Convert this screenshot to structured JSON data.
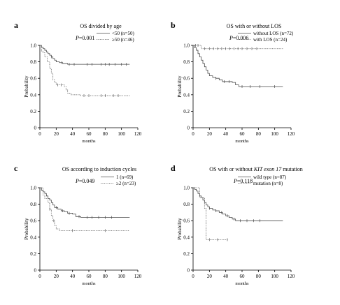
{
  "figure": {
    "background": "#ffffff"
  },
  "chart_data": [
    {
      "type": "line",
      "letter": "a",
      "title": "OS divided by age",
      "p_label": "P",
      "p_text": "=0.001",
      "xlabel": "months",
      "ylabel": "Probability",
      "xlim": [
        0,
        120
      ],
      "ylim": [
        0,
        1.0
      ],
      "xticks": [
        0,
        20,
        40,
        60,
        80,
        100,
        120
      ],
      "yticks": [
        "0",
        "0.2",
        "0.4",
        "0.6",
        "0.8",
        "1.0"
      ],
      "ytick_values": [
        0,
        0.2,
        0.4,
        0.6,
        0.8,
        1.0
      ],
      "legend_position": "top-right",
      "series": [
        {
          "name": "<50 (n=50)",
          "style": "solid",
          "color": "#4a4a4a",
          "points": [
            [
              0,
              1.0
            ],
            [
              2,
              0.98
            ],
            [
              4,
              0.96
            ],
            [
              6,
              0.94
            ],
            [
              8,
              0.92
            ],
            [
              10,
              0.9
            ],
            [
              12,
              0.88
            ],
            [
              14,
              0.86
            ],
            [
              16,
              0.84
            ],
            [
              18,
              0.82
            ],
            [
              20,
              0.8
            ],
            [
              24,
              0.79
            ],
            [
              28,
              0.78
            ],
            [
              34,
              0.77
            ],
            [
              110,
              0.77
            ]
          ],
          "censor": [
            14,
            27,
            36,
            42,
            58,
            64,
            75,
            80,
            85,
            92,
            100,
            106
          ]
        },
        {
          "name": "≥50 (n=46)",
          "style": "dotted",
          "color": "#5a5a5a",
          "points": [
            [
              0,
              1.0
            ],
            [
              2,
              0.93
            ],
            [
              4,
              0.91
            ],
            [
              6,
              0.86
            ],
            [
              9,
              0.8
            ],
            [
              12,
              0.72
            ],
            [
              14,
              0.66
            ],
            [
              16,
              0.58
            ],
            [
              18,
              0.55
            ],
            [
              20,
              0.52
            ],
            [
              30,
              0.5
            ],
            [
              32,
              0.46
            ],
            [
              34,
              0.42
            ],
            [
              38,
              0.4
            ],
            [
              50,
              0.39
            ],
            [
              110,
              0.39
            ]
          ],
          "censor": [
            22,
            26,
            54,
            60,
            75,
            80,
            90,
            96
          ]
        }
      ]
    },
    {
      "type": "line",
      "letter": "b",
      "title": "OS with or without LOS",
      "p_label": "P",
      "p_text": "=0.006",
      "xlabel": "months",
      "ylabel": "Probability",
      "xlim": [
        0,
        120
      ],
      "ylim": [
        0,
        1.0
      ],
      "xticks": [
        0,
        20,
        40,
        60,
        80,
        100,
        120
      ],
      "yticks": [
        "0",
        "0.2",
        "0.4",
        "0.6",
        "0.8",
        "1.0"
      ],
      "ytick_values": [
        0,
        0.2,
        0.4,
        0.6,
        0.8,
        1.0
      ],
      "legend_position": "top-right",
      "series": [
        {
          "name": "without LOS (n=72)",
          "style": "solid",
          "color": "#4a4a4a",
          "points": [
            [
              0,
              1.0
            ],
            [
              2,
              0.97
            ],
            [
              4,
              0.94
            ],
            [
              6,
              0.9
            ],
            [
              8,
              0.86
            ],
            [
              10,
              0.82
            ],
            [
              12,
              0.78
            ],
            [
              14,
              0.74
            ],
            [
              16,
              0.7
            ],
            [
              18,
              0.66
            ],
            [
              20,
              0.63
            ],
            [
              24,
              0.61
            ],
            [
              28,
              0.6
            ],
            [
              32,
              0.58
            ],
            [
              36,
              0.56
            ],
            [
              48,
              0.55
            ],
            [
              52,
              0.52
            ],
            [
              56,
              0.5
            ],
            [
              110,
              0.5
            ]
          ],
          "censor": [
            28,
            38,
            44,
            60,
            70,
            82,
            100
          ]
        },
        {
          "name": "with LOS (n=24)",
          "style": "dotted",
          "color": "#5a5a5a",
          "points": [
            [
              0,
              1.0
            ],
            [
              8,
              1.0
            ],
            [
              10,
              0.96
            ],
            [
              110,
              0.96
            ]
          ],
          "censor": [
            3,
            6,
            14,
            20,
            25,
            30,
            35,
            40,
            45,
            50,
            55,
            60,
            66,
            72,
            78
          ]
        }
      ]
    },
    {
      "type": "line",
      "letter": "c",
      "title": "OS according to induction cycles",
      "p_label": "P",
      "p_text": "=0.049",
      "xlabel": "months",
      "ylabel": "Probability",
      "xlim": [
        0,
        120
      ],
      "ylim": [
        0,
        1.0
      ],
      "xticks": [
        0,
        20,
        40,
        60,
        80,
        100,
        120
      ],
      "yticks": [
        "0",
        "0.2",
        "0.4",
        "0.6",
        "0.8",
        "1.0"
      ],
      "ytick_values": [
        0,
        0.2,
        0.4,
        0.6,
        0.8,
        1.0
      ],
      "legend_position": "top-right",
      "series": [
        {
          "name": "1 (n=69)",
          "style": "solid",
          "color": "#4a4a4a",
          "points": [
            [
              0,
              1.0
            ],
            [
              2,
              0.97
            ],
            [
              4,
              0.95
            ],
            [
              6,
              0.93
            ],
            [
              8,
              0.9
            ],
            [
              10,
              0.87
            ],
            [
              12,
              0.85
            ],
            [
              14,
              0.82
            ],
            [
              16,
              0.79
            ],
            [
              18,
              0.76
            ],
            [
              22,
              0.74
            ],
            [
              26,
              0.72
            ],
            [
              30,
              0.71
            ],
            [
              34,
              0.69
            ],
            [
              40,
              0.68
            ],
            [
              44,
              0.65
            ],
            [
              50,
              0.64
            ],
            [
              110,
              0.64
            ]
          ],
          "censor": [
            20,
            28,
            36,
            48,
            58,
            64,
            72,
            80,
            88
          ]
        },
        {
          "name": "≥2 (n=23)",
          "style": "dotted",
          "color": "#5a5a5a",
          "points": [
            [
              0,
              1.0
            ],
            [
              4,
              0.91
            ],
            [
              6,
              0.87
            ],
            [
              10,
              0.82
            ],
            [
              12,
              0.74
            ],
            [
              14,
              0.66
            ],
            [
              16,
              0.6
            ],
            [
              18,
              0.54
            ],
            [
              20,
              0.5
            ],
            [
              24,
              0.48
            ],
            [
              110,
              0.48
            ]
          ],
          "censor": [
            12,
            17,
            40,
            80
          ]
        }
      ]
    },
    {
      "type": "line",
      "letter": "d",
      "title_prefix": "OS with or without ",
      "title_italic": "KIT exon 17",
      "title_suffix": " mutation",
      "p_label": "P",
      "p_text": "=0.118",
      "xlabel": "months",
      "ylabel": "Probability",
      "xlim": [
        0,
        120
      ],
      "ylim": [
        0,
        1.0
      ],
      "xticks": [
        0,
        20,
        40,
        60,
        80,
        100,
        120
      ],
      "yticks": [
        "0",
        "0.2",
        "0.4",
        "0.6",
        "0.8",
        "1.0"
      ],
      "ytick_values": [
        0,
        0.2,
        0.4,
        0.6,
        0.8,
        1.0
      ],
      "legend_position": "top-right",
      "series": [
        {
          "name": "wild type (n=87)",
          "style": "solid",
          "color": "#4a4a4a",
          "points": [
            [
              0,
              1.0
            ],
            [
              2,
              0.98
            ],
            [
              4,
              0.96
            ],
            [
              6,
              0.93
            ],
            [
              8,
              0.9
            ],
            [
              10,
              0.88
            ],
            [
              12,
              0.85
            ],
            [
              14,
              0.82
            ],
            [
              16,
              0.79
            ],
            [
              18,
              0.77
            ],
            [
              20,
              0.75
            ],
            [
              24,
              0.73
            ],
            [
              28,
              0.72
            ],
            [
              32,
              0.7
            ],
            [
              36,
              0.68
            ],
            [
              40,
              0.66
            ],
            [
              44,
              0.64
            ],
            [
              48,
              0.62
            ],
            [
              52,
              0.6
            ],
            [
              110,
              0.6
            ]
          ],
          "censor": [
            20,
            28,
            35,
            42,
            50,
            58,
            66,
            74,
            82
          ]
        },
        {
          "name": "mutation (n=8)",
          "style": "dotted",
          "color": "#5a5a5a",
          "points": [
            [
              0,
              1.0
            ],
            [
              8,
              0.88
            ],
            [
              14,
              0.75
            ],
            [
              16,
              0.37
            ],
            [
              42,
              0.37
            ]
          ],
          "censor": [
            20,
            30,
            42
          ]
        }
      ]
    }
  ]
}
